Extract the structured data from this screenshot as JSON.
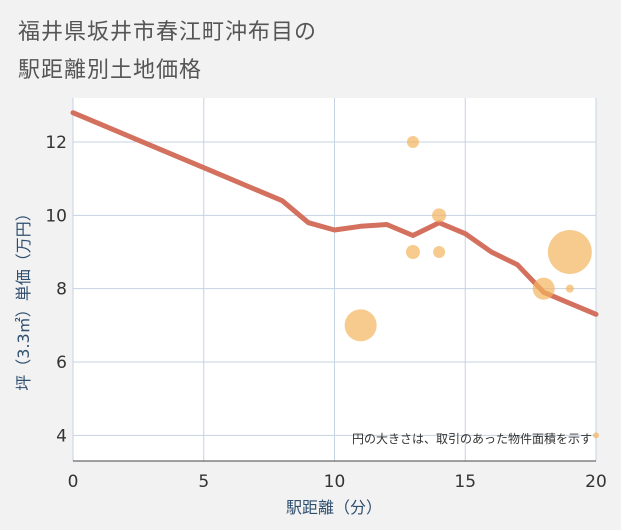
{
  "title_line1": "福井県坂井市春江町沖布目の",
  "title_line2": "駅距離別土地価格",
  "chart_data": {
    "type": "scatter",
    "xlabel": "駅距離（分）",
    "ylabel": "坪（3.3㎡）単価（万円）",
    "note": "円の大きさは、取引のあった物件面積を示す",
    "xlim": [
      0,
      20
    ],
    "ylim": [
      3.3,
      13.2
    ],
    "xticks": [
      "0",
      "5",
      "10",
      "15",
      "20"
    ],
    "yticks": [
      "4",
      "6",
      "8",
      "10",
      "12"
    ],
    "grid": true,
    "line": {
      "x": [
        0,
        1,
        2,
        3,
        4,
        5,
        6,
        7,
        8,
        9,
        10,
        11,
        12,
        13,
        14,
        15,
        16,
        17,
        18,
        19,
        20
      ],
      "y": [
        12.8,
        12.5,
        12.2,
        11.9,
        11.6,
        11.3,
        11.0,
        10.7,
        10.4,
        9.8,
        9.6,
        9.7,
        9.75,
        9.45,
        9.8,
        9.5,
        9.0,
        8.65,
        7.9,
        7.6,
        7.3
      ]
    },
    "points": [
      {
        "x": 13,
        "y": 12.0,
        "size": 6
      },
      {
        "x": 14,
        "y": 10.0,
        "size": 7
      },
      {
        "x": 13,
        "y": 9.0,
        "size": 7
      },
      {
        "x": 14,
        "y": 9.0,
        "size": 6
      },
      {
        "x": 11,
        "y": 7.0,
        "size": 16
      },
      {
        "x": 18,
        "y": 8.0,
        "size": 11
      },
      {
        "x": 19,
        "y": 9.0,
        "size": 22
      },
      {
        "x": 19,
        "y": 8.0,
        "size": 4
      },
      {
        "x": 20,
        "y": 4.0,
        "size": 3
      }
    ],
    "line_color": "#d3705e",
    "point_color": "#f3b45c"
  }
}
